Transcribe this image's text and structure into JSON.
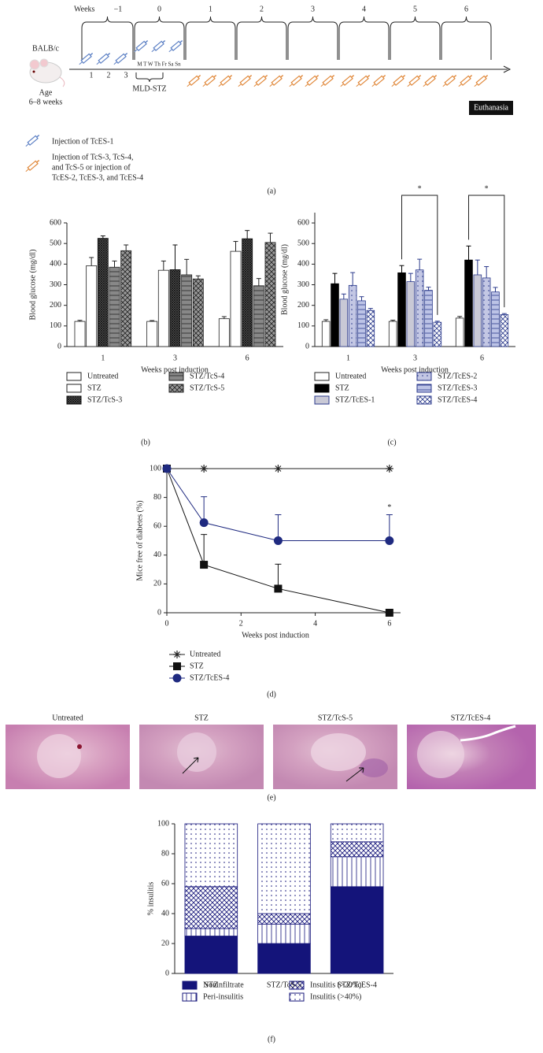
{
  "schematic": {
    "weeks_label": "Weeks",
    "weeks": [
      "−1",
      "0",
      "1",
      "2",
      "3",
      "4",
      "5",
      "6"
    ],
    "strain": "BALB/c",
    "age": "Age",
    "age_range": "6–8 weeks",
    "tces1_days": [
      "1",
      "2",
      "3"
    ],
    "days": "M T W Th Fr Sa Sn",
    "mld": "MLD-STZ",
    "end": "Euthanasia",
    "legend_tces1": "Injection of TcES-1",
    "legend_other": [
      "Injection of TcS-3, TcS-4,",
      "and TcS-5 or injection of",
      "TcES-2, TcES-3, and TcES-4"
    ],
    "panel": "(a)"
  },
  "histology": {
    "labels": [
      "Untreated",
      "STZ",
      "STZ/TcS-5",
      "STZ/TcES-4"
    ],
    "panel": "(e)"
  },
  "chart_data": [
    {
      "type": "bar",
      "panel": "(b)",
      "ylabel": "Blood glucose (mg/dl)",
      "xlabel": "Weeks post induction",
      "categories": [
        "1",
        "3",
        "6"
      ],
      "ylim": [
        0,
        600
      ],
      "yticks": [
        0,
        100,
        200,
        300,
        400,
        500,
        600
      ],
      "series": [
        {
          "name": "Untreated",
          "color": "#ffffff",
          "edgecolor": "#222222",
          "pattern": "none",
          "values": [
            122,
            122,
            135
          ],
          "errors": [
            5,
            4,
            10
          ]
        },
        {
          "name": "STZ",
          "color": "#ffffff",
          "edgecolor": "#222222",
          "pattern": "none",
          "values": [
            392,
            370,
            462
          ],
          "errors": [
            40,
            45,
            48
          ]
        },
        {
          "name": "STZ/TcS-3",
          "color": "#666666",
          "edgecolor": "#111111",
          "pattern": "dense-cross",
          "values": [
            525,
            373,
            523
          ],
          "errors": [
            12,
            120,
            40
          ]
        },
        {
          "name": "STZ/TcS-4",
          "color": "#888888",
          "edgecolor": "#222222",
          "pattern": "horizontal",
          "values": [
            385,
            348,
            295
          ],
          "errors": [
            30,
            75,
            35
          ]
        },
        {
          "name": "STZ/TcS-5",
          "color": "#999999",
          "edgecolor": "#222222",
          "pattern": "crosshatch",
          "values": [
            465,
            328,
            505
          ],
          "errors": [
            28,
            15,
            45
          ]
        }
      ]
    },
    {
      "type": "bar",
      "panel": "(c)",
      "ylabel": "Blood glucose (mg/dl)",
      "xlabel": "Weeks post induction",
      "categories": [
        "1",
        "3",
        "6"
      ],
      "ylim": [
        0,
        650
      ],
      "yticks": [
        0,
        100,
        200,
        300,
        400,
        500,
        600
      ],
      "series": [
        {
          "name": "Untreated",
          "color": "#ffffff",
          "edgecolor": "#222222",
          "pattern": "none",
          "values": [
            122,
            122,
            138
          ],
          "errors": [
            8,
            6,
            8
          ]
        },
        {
          "name": "STZ",
          "color": "#000000",
          "edgecolor": "#000000",
          "pattern": "none",
          "values": [
            305,
            358,
            420
          ],
          "errors": [
            50,
            35,
            68
          ]
        },
        {
          "name": "STZ/TcES-1",
          "color": "#c9c9d6",
          "edgecolor": "#2b3a8c",
          "pattern": "none",
          "values": [
            230,
            315,
            348
          ],
          "errors": [
            25,
            40,
            72
          ]
        },
        {
          "name": "STZ/TcES-2",
          "color": "#c3c7e4",
          "edgecolor": "#2b3a8c",
          "pattern": "dotted",
          "values": [
            297,
            372,
            333
          ],
          "errors": [
            62,
            52,
            55
          ]
        },
        {
          "name": "STZ/TcES-3",
          "color": "#bcc3e6",
          "edgecolor": "#2b3a8c",
          "pattern": "horizontal",
          "values": [
            222,
            273,
            265
          ],
          "errors": [
            20,
            15,
            22
          ]
        },
        {
          "name": "STZ/TcES-4",
          "color": "#ffffff",
          "edgecolor": "#2b3a8c",
          "pattern": "crosshatch",
          "values": [
            175,
            118,
            155
          ],
          "errors": [
            10,
            5,
            5
          ]
        }
      ],
      "significance": [
        {
          "label": "*",
          "category": "3",
          "from": "STZ",
          "to": "STZ/TcES-4"
        },
        {
          "label": "*",
          "category": "6",
          "from": "STZ",
          "to": "STZ/TcES-4"
        }
      ]
    },
    {
      "type": "line",
      "panel": "(d)",
      "ylabel": "Mice free of diabetes (%)",
      "xlabel": "Weeks post induction",
      "x": [
        0,
        1,
        3,
        6
      ],
      "xlim": [
        0,
        6.3
      ],
      "xticks": [
        0,
        2,
        4,
        6
      ],
      "ylim": [
        0,
        100
      ],
      "yticks": [
        0,
        20,
        40,
        60,
        80,
        100
      ],
      "series": [
        {
          "name": "Untreated",
          "color": "#222222",
          "marker": "asterisk",
          "values": [
            100,
            100,
            100,
            100
          ]
        },
        {
          "name": "STZ",
          "color": "#111111",
          "marker": "square",
          "values": [
            100,
            33.3,
            16.7,
            0
          ],
          "errors": [
            0,
            21,
            17,
            0
          ]
        },
        {
          "name": "STZ/TcES-4",
          "color": "#1f2a80",
          "marker": "circle",
          "values": [
            100,
            62.5,
            50,
            50
          ],
          "errors": [
            0,
            18,
            18,
            18
          ]
        }
      ],
      "annotations": [
        {
          "label": "*",
          "x": 6,
          "series": "STZ/TcES-4"
        }
      ]
    },
    {
      "type": "stacked-bar",
      "panel": "(f)",
      "ylabel": "% insulitis",
      "categories": [
        "STZ",
        "STZ/TcS-5",
        "STZ/TcES-4"
      ],
      "ylim": [
        0,
        100
      ],
      "yticks": [
        0,
        20,
        40,
        60,
        80,
        100
      ],
      "series": [
        {
          "name": "Noninfiltrate",
          "color": "#14147a",
          "edgecolor": "#14147a",
          "pattern": "none",
          "values": [
            25,
            20,
            58
          ]
        },
        {
          "name": "Peri-insulitis",
          "color": "#ffffff",
          "edgecolor": "#14147a",
          "pattern": "vertical",
          "values": [
            5,
            13,
            20
          ]
        },
        {
          "name": "Insulitis (>20%)",
          "color": "#ffffff",
          "edgecolor": "#14147a",
          "pattern": "crosshatch",
          "values": [
            28,
            7,
            10
          ]
        },
        {
          "name": "Insulitis (>40%)",
          "color": "#ffffff",
          "edgecolor": "#14147a",
          "pattern": "dotted",
          "values": [
            42,
            60,
            12
          ]
        }
      ]
    }
  ]
}
